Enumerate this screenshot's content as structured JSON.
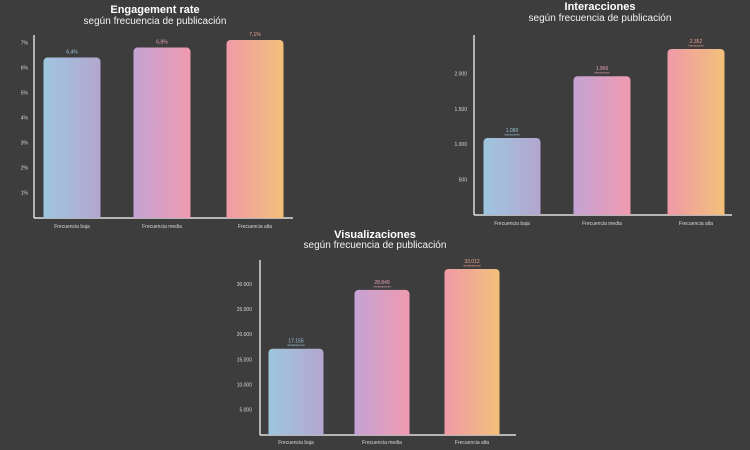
{
  "colors": {
    "background": "#3d3d3d",
    "axis": "#ffffff",
    "bar_gradients": [
      [
        "#9ec6df",
        "#b3a6cf"
      ],
      [
        "#c4a3d4",
        "#f09ab0"
      ],
      [
        "#f09aa8",
        "#f2c07a"
      ]
    ],
    "value_label_colors": [
      "#9ec6df",
      "#e8a0bc",
      "#f2a28e"
    ]
  },
  "chart_data": [
    {
      "type": "bar",
      "title": "Engagement rate",
      "subtitle": "según frecuencia de publicación",
      "categories": [
        "Frecuencia baja",
        "Frecuencia media",
        "Frecuencia alta"
      ],
      "values": [
        6.4,
        6.8,
        7.1
      ],
      "value_labels": [
        "6,4%",
        "6,8%",
        "7,1%"
      ],
      "value_sublabels": [
        "",
        "",
        ""
      ],
      "yticks": [
        1,
        2,
        3,
        4,
        5,
        6,
        7
      ],
      "ytick_labels": [
        "1%",
        "2%",
        "3%",
        "4%",
        "5%",
        "6%",
        "7%"
      ],
      "ylim": [
        0,
        7.3
      ],
      "grid": false
    },
    {
      "type": "bar",
      "title": "Interacciones",
      "subtitle": "según frecuencia de publicación",
      "categories": [
        "Frecuencia baja",
        "Frecuencia media",
        "Frecuencia alta"
      ],
      "values": [
        1090,
        1966,
        2352
      ],
      "value_labels": [
        "1.090",
        "1.966",
        "2.352"
      ],
      "value_sublabels": [
        "interacciones",
        "interacciones",
        "interacciones"
      ],
      "yticks": [
        500,
        1000,
        1500,
        2000
      ],
      "ytick_labels": [
        "500",
        "1.000",
        "1.500",
        "2.000"
      ],
      "ylim": [
        0,
        2550
      ],
      "grid": false
    },
    {
      "type": "bar",
      "title": "Visualizaciones",
      "subtitle": "según frecuencia de publicación",
      "categories": [
        "Frecuencia baja",
        "Frecuencia media",
        "Frecuencia alta"
      ],
      "values": [
        17155,
        28849,
        33012
      ],
      "value_labels": [
        "17.155",
        "28.849",
        "33.012"
      ],
      "value_sublabels": [
        "visualizaciones",
        "visualizaciones",
        "visualizaciones"
      ],
      "yticks": [
        5000,
        10000,
        15000,
        20000,
        25000,
        30000
      ],
      "ytick_labels": [
        "5.000",
        "10.000",
        "15.000",
        "20.000",
        "25.000",
        "30.000"
      ],
      "ylim": [
        0,
        34800
      ],
      "grid": false
    }
  ]
}
